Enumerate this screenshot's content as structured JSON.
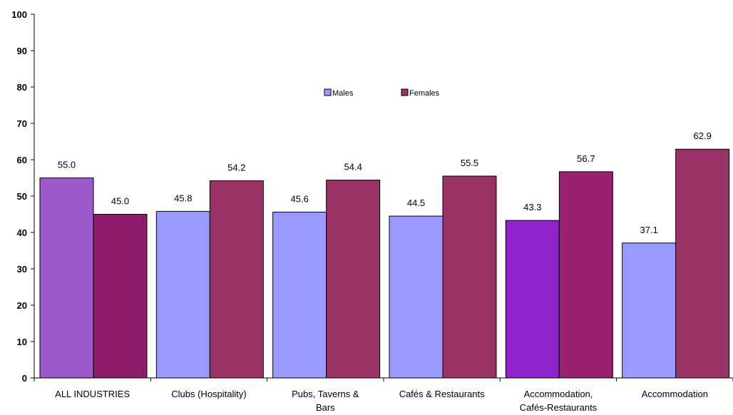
{
  "chart_data": {
    "type": "bar",
    "title": "",
    "xlabel": "",
    "ylabel": "",
    "ylim": [
      0,
      100
    ],
    "yticks": [
      0,
      10,
      20,
      30,
      40,
      50,
      60,
      70,
      80,
      90,
      100
    ],
    "grid": false,
    "legend_position": "top-center",
    "categories": [
      [
        "ALL INDUSTRIES"
      ],
      [
        "Clubs (Hospitality)"
      ],
      [
        "Pubs, Taverns &",
        "Bars"
      ],
      [
        "Cafés & Restaurants"
      ],
      [
        "Accommodation,",
        "Cafés-Restaurants"
      ],
      [
        "Accommodation"
      ]
    ],
    "series": [
      {
        "name": "Males",
        "color": "#9999ff",
        "values": [
          55.0,
          45.8,
          45.6,
          44.5,
          43.3,
          37.1
        ],
        "point_colors": [
          "#9b59c9",
          "#9999ff",
          "#9999ff",
          "#9999ff",
          "#8e24c9",
          "#9999ff"
        ]
      },
      {
        "name": "Females",
        "color": "#993366",
        "values": [
          45.0,
          54.2,
          54.4,
          55.5,
          56.7,
          62.9
        ],
        "point_colors": [
          "#8e1a6a",
          "#993366",
          "#993366",
          "#993366",
          "#99206e",
          "#993366"
        ]
      }
    ]
  }
}
